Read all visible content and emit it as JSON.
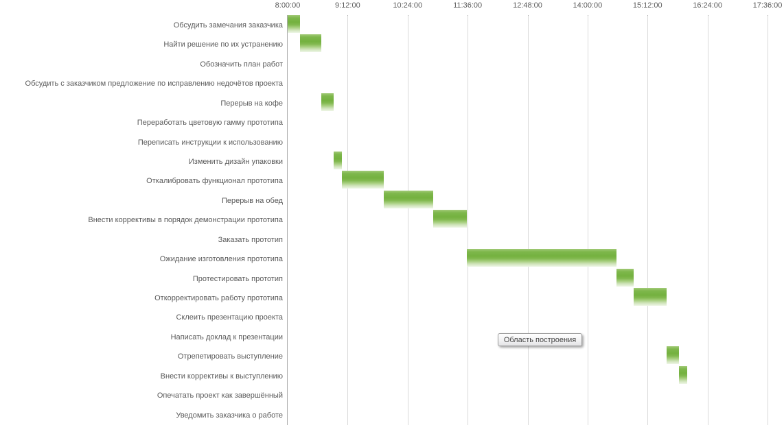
{
  "chart_data": {
    "type": "bar",
    "subtype": "gantt",
    "title": "",
    "legend": false,
    "grid": true,
    "axis": {
      "position": "top",
      "tick_labels": [
        "8:00:00",
        "9:12:00",
        "10:24:00",
        "11:36:00",
        "12:48:00",
        "14:00:00",
        "15:12:00",
        "16:24:00",
        "17:36:00"
      ],
      "min_time": "8:00:00",
      "max_time": "17:36:00",
      "tick_interval_minutes": 72
    },
    "bar_color": "#76b241",
    "tasks": [
      {
        "label": "Обсудить замечания заказчика",
        "start": "8:00",
        "end": "8:15"
      },
      {
        "label": "Найти решение по их устранению",
        "start": "8:15",
        "end": "8:40"
      },
      {
        "label": "Обозначить план работ",
        "start": null,
        "end": null
      },
      {
        "label": "Обсудить с заказчиком предложение по исправлению недочётов проекта",
        "start": null,
        "end": null
      },
      {
        "label": "Перерыв на кофе",
        "start": "8:40",
        "end": "8:55"
      },
      {
        "label": "Переработать цветовую гамму прототипа",
        "start": null,
        "end": null
      },
      {
        "label": "Переписать инструкции к использованию",
        "start": null,
        "end": null
      },
      {
        "label": "Изменить дизайн упаковки",
        "start": "8:55",
        "end": "9:05"
      },
      {
        "label": "Откалибровать функционал прототипа",
        "start": "9:05",
        "end": "9:55"
      },
      {
        "label": "Перерыв на обед",
        "start": "9:55",
        "end": "10:55"
      },
      {
        "label": "Внести коррективы в порядок демонстрации прототипа",
        "start": "10:55",
        "end": "11:35"
      },
      {
        "label": "Заказать прототип",
        "start": null,
        "end": null
      },
      {
        "label": "Ожидание изготовления  прототипа",
        "start": "11:35",
        "end": "14:35"
      },
      {
        "label": "Протестировать прототип",
        "start": "14:35",
        "end": "14:55"
      },
      {
        "label": "Откорректировать работу прототипа",
        "start": "14:55",
        "end": "15:35"
      },
      {
        "label": "Склеить презентацию проекта",
        "start": null,
        "end": null
      },
      {
        "label": "Написать доклад к презентации",
        "start": null,
        "end": null
      },
      {
        "label": "Отрепетировать выступление",
        "start": "15:35",
        "end": "15:50"
      },
      {
        "label": "Внести коррективы к выступлению",
        "start": "15:50",
        "end": "16:00"
      },
      {
        "label": "Опечатать проект как завершённый",
        "start": null,
        "end": null
      },
      {
        "label": "Уведомить заказчика о работе",
        "start": null,
        "end": null
      }
    ]
  },
  "tooltip": {
    "text": "Область построения"
  },
  "colors": {
    "bar_green": "#76b241",
    "label_text": "#595959",
    "gridline": "#d9d9d9",
    "axis_line": "#ababab",
    "background": "#ffffff"
  }
}
